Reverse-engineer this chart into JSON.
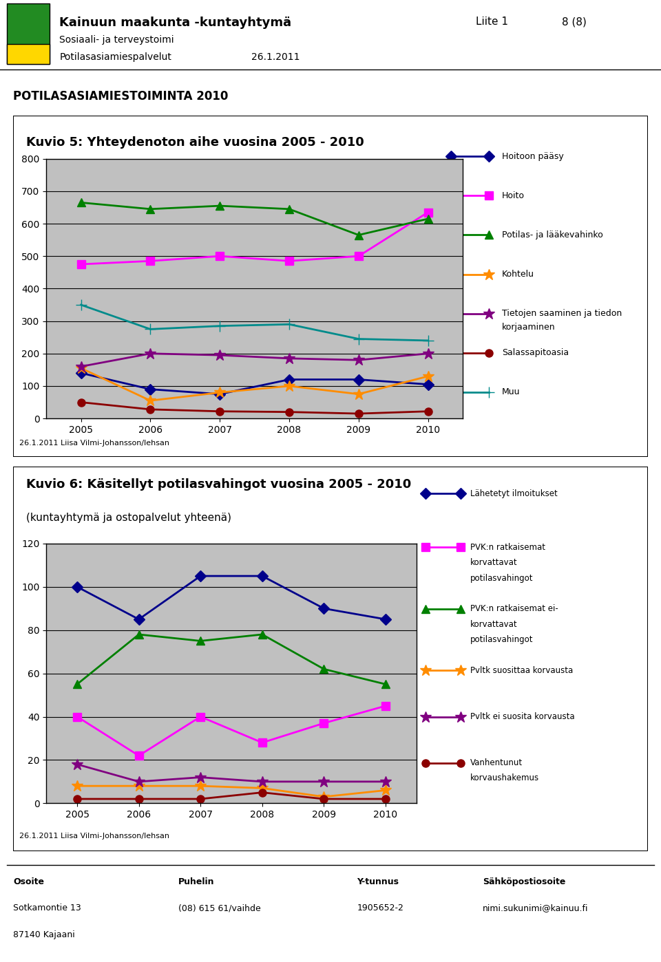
{
  "header": {
    "org": "Kainuun maakunta -kuntayhtymä",
    "dept1": "Sosiaali- ja terveystoimi",
    "dept2": "Potilasasiamiespalvelut",
    "date": "26.1.2011",
    "liite": "Liite 1",
    "page": "8 (8)"
  },
  "main_title": "POTILASASIAMIESTOIMINTA 2010",
  "chart1": {
    "title": "Kuvio 5: Yhteydenoton aihe vuosina 2005 - 2010",
    "years": [
      2005,
      2006,
      2007,
      2008,
      2009,
      2010
    ],
    "ylim": [
      0,
      800
    ],
    "yticks": [
      0,
      100,
      200,
      300,
      400,
      500,
      600,
      700,
      800
    ],
    "footnote": "26.1.2011 Liisa Vilmi-Johansson/lehsan",
    "series": [
      {
        "label": "Hoitoon pääsy",
        "color": "#00008B",
        "marker": "D",
        "values": [
          140,
          90,
          75,
          120,
          120,
          105
        ]
      },
      {
        "label": "Hoito",
        "color": "#FF00FF",
        "marker": "s",
        "values": [
          475,
          485,
          500,
          485,
          500,
          635
        ]
      },
      {
        "label": "Potilas- ja lääkevahinko",
        "color": "#008000",
        "marker": "^",
        "values": [
          665,
          645,
          655,
          645,
          565,
          615
        ]
      },
      {
        "label": "Kohtelu",
        "color": "#FF8C00",
        "marker": "*",
        "values": [
          155,
          55,
          80,
          100,
          75,
          130
        ]
      },
      {
        "label": "Tietojen saaminen ja tiedon\nkorjaaminen",
        "color": "#800080",
        "marker": "*",
        "values": [
          160,
          200,
          195,
          185,
          180,
          200
        ]
      },
      {
        "label": "Salassapitoasia",
        "color": "#8B0000",
        "marker": "o",
        "values": [
          50,
          28,
          22,
          20,
          15,
          22
        ]
      },
      {
        "label": "Muu",
        "color": "#008B8B",
        "marker": "+",
        "values": [
          350,
          275,
          285,
          290,
          245,
          240
        ]
      }
    ]
  },
  "chart2": {
    "title": "Kuvio 6: Käsitellyt potilasvahingot vuosina 2005 - 2010",
    "subtitle": "(kuntayhtymä ja ostopalvelut yhteenä)",
    "years": [
      2005,
      2006,
      2007,
      2008,
      2009,
      2010
    ],
    "ylim": [
      0,
      120
    ],
    "yticks": [
      0,
      20,
      40,
      60,
      80,
      100,
      120
    ],
    "footnote": "26.1.2011 Liisa Vilmi-Johansson/lehsan",
    "series": [
      {
        "label": "Lähetetyt ilmoitukset",
        "color": "#00008B",
        "marker": "D",
        "values": [
          100,
          85,
          105,
          105,
          90,
          85
        ]
      },
      {
        "label": "PVK:n ratkaisemat\nkorvattavat\npotilasvahingot",
        "color": "#FF00FF",
        "marker": "s",
        "values": [
          40,
          22,
          40,
          28,
          37,
          45
        ]
      },
      {
        "label": "PVK:n ratkaisemat ei-\nkorvattavat\npotilasvahingot",
        "color": "#008000",
        "marker": "^",
        "values": [
          55,
          78,
          75,
          78,
          62,
          55
        ]
      },
      {
        "label": "Pvltk suosittaa korvausta",
        "color": "#FF8C00",
        "marker": "*",
        "values": [
          8,
          8,
          8,
          7,
          3,
          6
        ]
      },
      {
        "label": "Pvltk ei suosita korvausta",
        "color": "#800080",
        "marker": "*",
        "values": [
          18,
          10,
          12,
          10,
          10,
          10
        ]
      },
      {
        "label": "Vanhentunut\nkorvaushakemus",
        "color": "#8B0000",
        "marker": "o",
        "values": [
          2,
          2,
          2,
          5,
          2,
          2
        ]
      }
    ]
  },
  "footer": {
    "osoite_label": "Osoite",
    "osoite": "Sotkamontie 13\n87140 Kajaani",
    "puhelin_label": "Puhelin",
    "puhelin": "(08) 615 61/vaihde",
    "ytunnus_label": "Y-tunnus",
    "ytunnus": "1905652-2",
    "sahkoposti_label": "Sähköpostiosoite",
    "sahkoposti": "nimi.sukunimi@kainuu.fi"
  }
}
